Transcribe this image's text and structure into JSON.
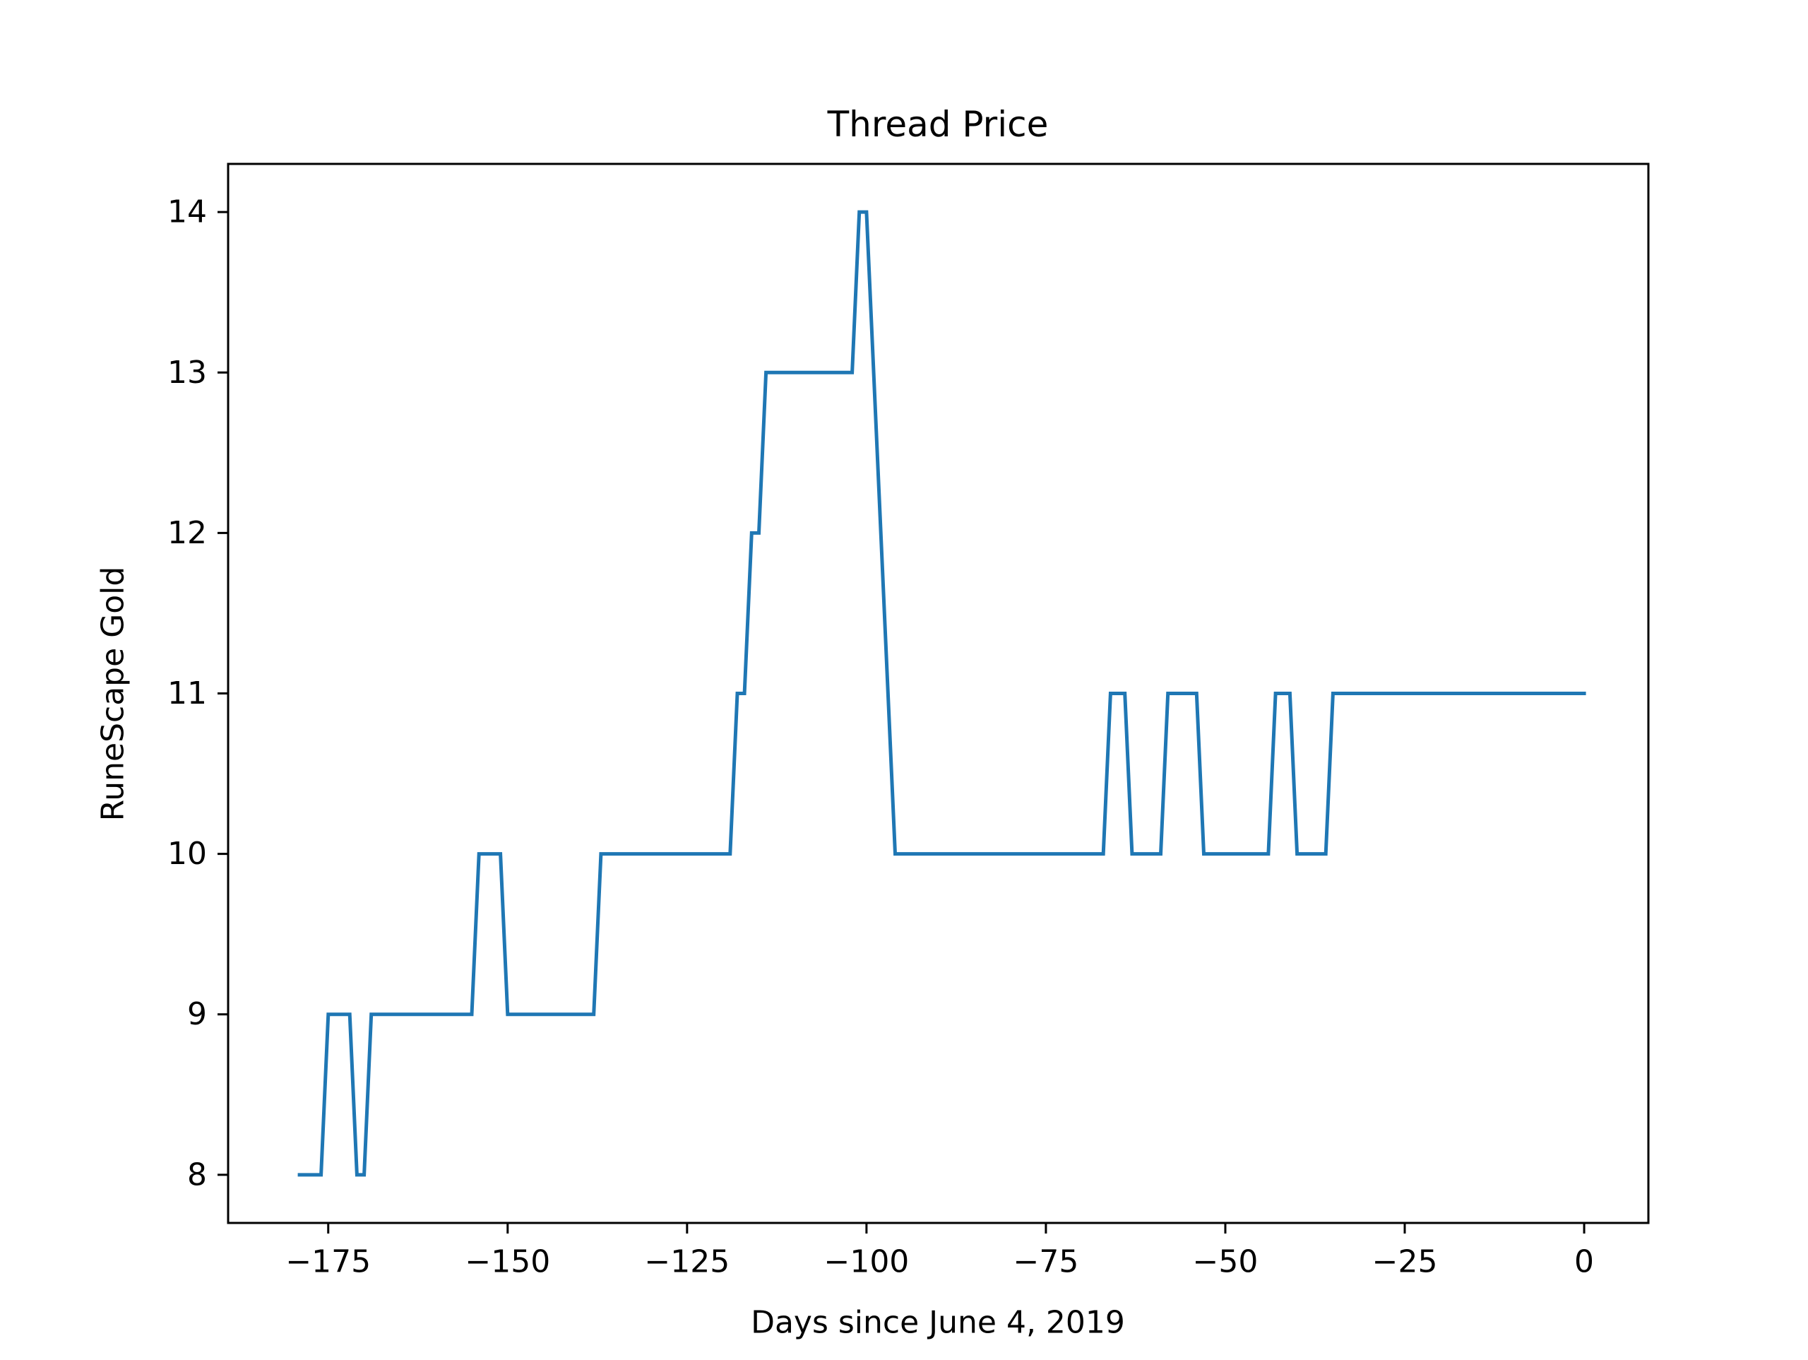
{
  "chart_data": {
    "type": "line",
    "title": "Thread Price",
    "xlabel": "Days since June 4, 2019",
    "ylabel": "RuneScape Gold",
    "xlim": [
      -188.95,
      8.95
    ],
    "ylim": [
      7.7,
      14.3
    ],
    "xticks": [
      -175,
      -150,
      -125,
      -100,
      -75,
      -50,
      -25,
      0
    ],
    "xtick_labels": [
      "−175",
      "−150",
      "−125",
      "−100",
      "−75",
      "−50",
      "−25",
      "0"
    ],
    "yticks": [
      8,
      9,
      10,
      11,
      12,
      13,
      14
    ],
    "ytick_labels": [
      "8",
      "9",
      "10",
      "11",
      "12",
      "13",
      "14"
    ],
    "grid": false,
    "series": [
      {
        "color": "#1f77b4",
        "x": [
          -179,
          -176,
          -175,
          -172,
          -171,
          -170,
          -169,
          -155,
          -154,
          -151,
          -150,
          -138,
          -137,
          -119,
          -118,
          -117,
          -116,
          -115,
          -114,
          -102,
          -101,
          -100,
          -96,
          -67,
          -66,
          -64,
          -63,
          -59,
          -58,
          -54,
          -53,
          -44,
          -43,
          -41,
          -40,
          -36,
          -35,
          0
        ],
        "y": [
          8,
          8,
          9,
          9,
          8,
          8,
          9,
          9,
          10,
          10,
          9,
          9,
          10,
          10,
          11,
          11,
          12,
          12,
          13,
          13,
          14,
          14,
          10,
          10,
          11,
          11,
          10,
          10,
          11,
          11,
          10,
          10,
          11,
          11,
          10,
          10,
          11,
          11
        ]
      }
    ]
  }
}
